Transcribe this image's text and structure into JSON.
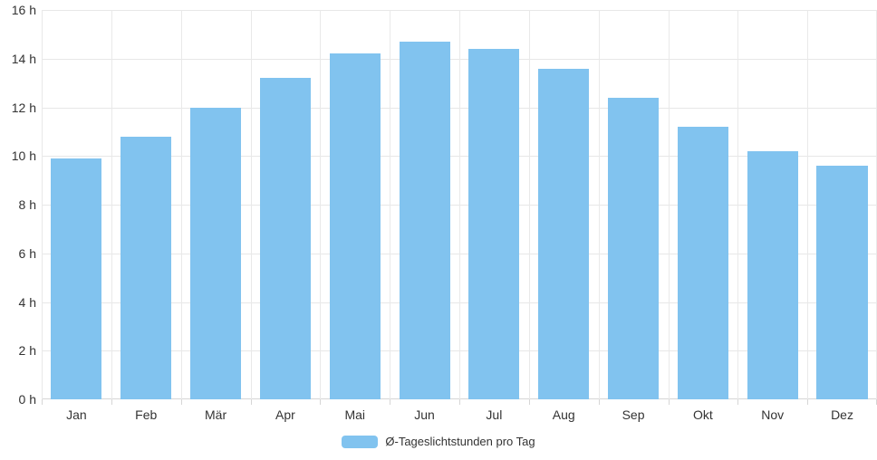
{
  "chart_data": {
    "type": "bar",
    "title": "",
    "categories": [
      "Jan",
      "Feb",
      "Mär",
      "Apr",
      "Mai",
      "Jun",
      "Jul",
      "Aug",
      "Sep",
      "Okt",
      "Nov",
      "Dez"
    ],
    "values": [
      9.9,
      10.8,
      12.0,
      13.2,
      14.2,
      14.7,
      14.4,
      13.6,
      12.4,
      11.2,
      10.2,
      9.6
    ],
    "series_name": "Ø-Tageslichtstunden pro Tag",
    "unit": "h",
    "ylim": [
      0,
      16
    ],
    "ytick_step": 2,
    "ytick_labels": [
      "0 h",
      "2 h",
      "4 h",
      "6 h",
      "8 h",
      "10 h",
      "12 h",
      "14 h",
      "16 h"
    ],
    "grid": true,
    "vertical_category_gridlines": true,
    "legend_position": "bottom-center",
    "colors": {
      "bar": "#81c3ef",
      "gridline": "#e7e7e7",
      "axis_line": "#d6d6d6",
      "label_text": "#333333"
    }
  }
}
